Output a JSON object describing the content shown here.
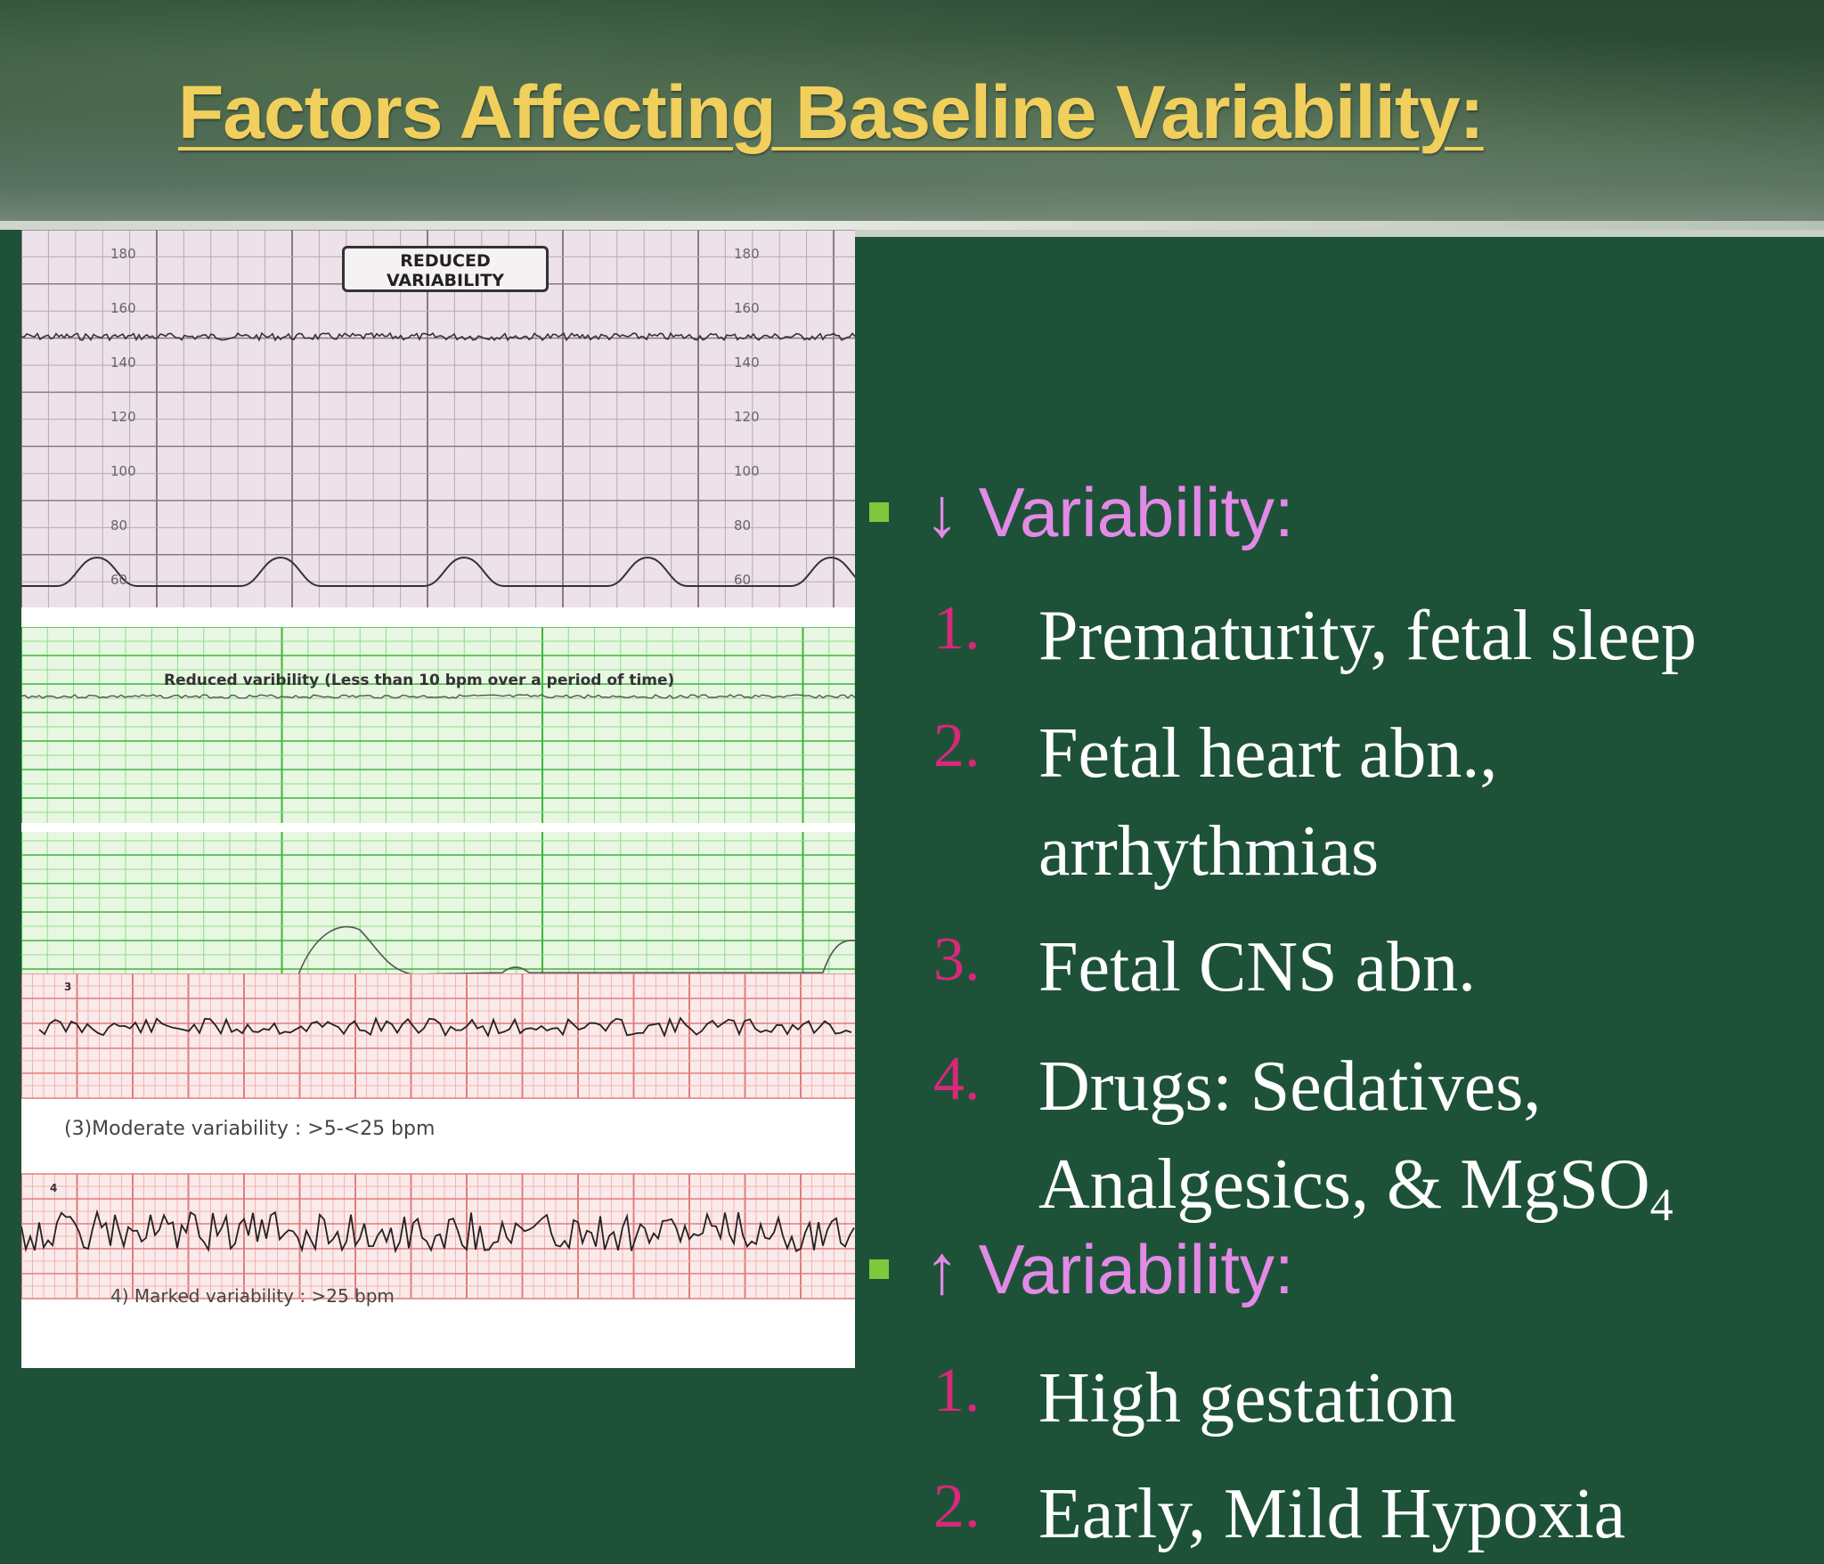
{
  "title": "Factors Affecting Baseline Variability:",
  "figure": {
    "strip1": {
      "label_line1": "REDUCED",
      "label_line2": "VARIABILITY",
      "y_ticks": [
        "180",
        "160",
        "140",
        "120",
        "100",
        "80",
        "60"
      ]
    },
    "strip2": {
      "caption": "Reduced varibility (Less than 10 bpm over a period of time)"
    },
    "panel3": {
      "number": "3",
      "caption": "(3)Moderate variability : >5-<25 bpm"
    },
    "panel4": {
      "number": "4",
      "caption": "4) Marked variability : >25 bpm"
    }
  },
  "content": {
    "decreased": {
      "heading": "↓ Variability:",
      "items": [
        {
          "num": "1.",
          "text": "Prematurity, fetal sleep"
        },
        {
          "num": "2.",
          "line1": "Fetal heart abn.,",
          "line2": "arrhythmias"
        },
        {
          "num": "3.",
          "text": "Fetal CNS abn."
        },
        {
          "num": "4.",
          "line1": "Drugs: Sedatives,",
          "line2": "Analgesics, & MgSO",
          "sub": "4"
        }
      ]
    },
    "increased": {
      "heading": "↑ Variability:",
      "items": [
        {
          "num": "1.",
          "text": "High gestation"
        },
        {
          "num": "2.",
          "text": "Early, Mild Hypoxia"
        }
      ]
    }
  },
  "colors": {
    "background": "#1d5239",
    "title": "#f1cf5c",
    "heading": "#e28ae6",
    "bullet": "#7ec83b",
    "number": "#d8287a",
    "text": "#ffffff"
  }
}
